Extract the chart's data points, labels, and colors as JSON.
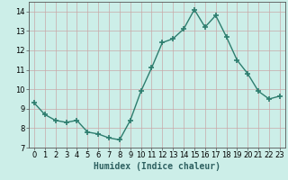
{
  "x": [
    0,
    1,
    2,
    3,
    4,
    5,
    6,
    7,
    8,
    9,
    10,
    11,
    12,
    13,
    14,
    15,
    16,
    17,
    18,
    19,
    20,
    21,
    22,
    23
  ],
  "y": [
    9.3,
    8.7,
    8.4,
    8.3,
    8.4,
    7.8,
    7.7,
    7.5,
    7.4,
    8.4,
    9.9,
    11.1,
    12.4,
    12.6,
    13.1,
    14.1,
    13.2,
    13.8,
    12.7,
    11.5,
    10.8,
    9.9,
    9.5,
    9.65
  ],
  "line_color": "#2d7d6e",
  "marker": "+",
  "marker_size": 4,
  "line_width": 1.0,
  "bg_color": "#cceee8",
  "grid_color": "#c8a8a8",
  "xlabel": "Humidex (Indice chaleur)",
  "xlabel_fontsize": 7,
  "tick_fontsize": 6,
  "ylim": [
    7,
    14.5
  ],
  "xlim": [
    -0.5,
    23.5
  ],
  "yticks": [
    7,
    8,
    9,
    10,
    11,
    12,
    13,
    14
  ],
  "xticks": [
    0,
    1,
    2,
    3,
    4,
    5,
    6,
    7,
    8,
    9,
    10,
    11,
    12,
    13,
    14,
    15,
    16,
    17,
    18,
    19,
    20,
    21,
    22,
    23
  ]
}
